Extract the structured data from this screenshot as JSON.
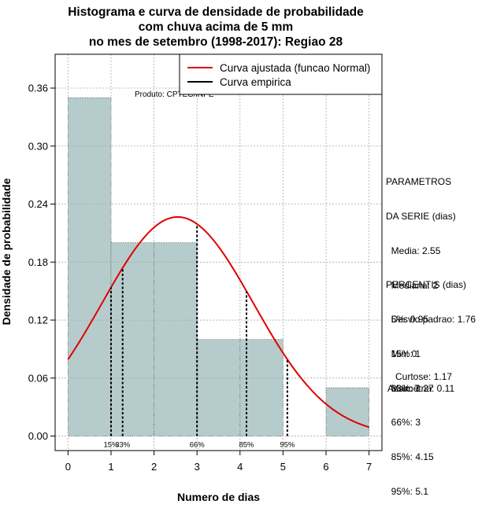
{
  "chart_data": {
    "type": "bar",
    "title": [
      "Histograma e curva de densidade de probabilidade",
      "com chuva acima de 5 mm",
      "no mes de setembro (1998-2017): Regiao 28"
    ],
    "xlabel": "Numero de dias",
    "ylabel": "Densidade de probabilidade",
    "xlim": [
      -0.3,
      7.3
    ],
    "ylim": [
      -0.015,
      0.395
    ],
    "x_ticks": [
      0,
      1,
      2,
      3,
      4,
      5,
      6,
      7
    ],
    "y_ticks": [
      0.0,
      0.06,
      0.12,
      0.18,
      0.24,
      0.3,
      0.36
    ],
    "y_tick_labels": [
      "0.00",
      "0.06",
      "0.12",
      "0.18",
      "0.24",
      "0.30",
      "0.36"
    ],
    "bins": [
      {
        "from": 0,
        "to": 1,
        "density": 0.35
      },
      {
        "from": 1,
        "to": 2,
        "density": 0.2
      },
      {
        "from": 2,
        "to": 3,
        "density": 0.2
      },
      {
        "from": 3,
        "to": 4,
        "density": 0.1
      },
      {
        "from": 4,
        "to": 5,
        "density": 0.1
      },
      {
        "from": 5,
        "to": 6,
        "density": 0.0
      },
      {
        "from": 6,
        "to": 7,
        "density": 0.05
      }
    ],
    "normal_fit": {
      "name": "Curva ajustada (funcao Normal)",
      "mean": 2.55,
      "sd": 1.76,
      "color": "#e00000"
    },
    "empirical": {
      "name": "Curva empirica",
      "color": "#000000"
    },
    "percentile_markers": [
      {
        "label": "15%",
        "x": 1.0
      },
      {
        "label": "33%",
        "x": 1.27
      },
      {
        "label": "66%",
        "x": 3.0
      },
      {
        "label": "85%",
        "x": 4.15
      },
      {
        "label": "95%",
        "x": 5.1
      }
    ],
    "credit": "Produto: CPTEC/INPE",
    "bar_color": "#b6cccc",
    "grid": true,
    "legend_position": "top-right"
  },
  "side_panel": {
    "parametros": [
      "PARAMETROS",
      "DA SERIE (dias)",
      "  Media: 2.55",
      "  Mediana: 2",
      "  Desvio padrao: 1.76",
      "  Min: 0",
      "  Max: 7"
    ],
    "percentis": [
      "PERCENTIS (dias)",
      "  5%: 0.95",
      "  15%: 1",
      "  33%: 1.27",
      "  66%: 3",
      "  85%: 4.15",
      "  95%: 5.1"
    ],
    "curtose": "Curtose: 1.17",
    "assimetria": "Assimetria: 0.11"
  }
}
